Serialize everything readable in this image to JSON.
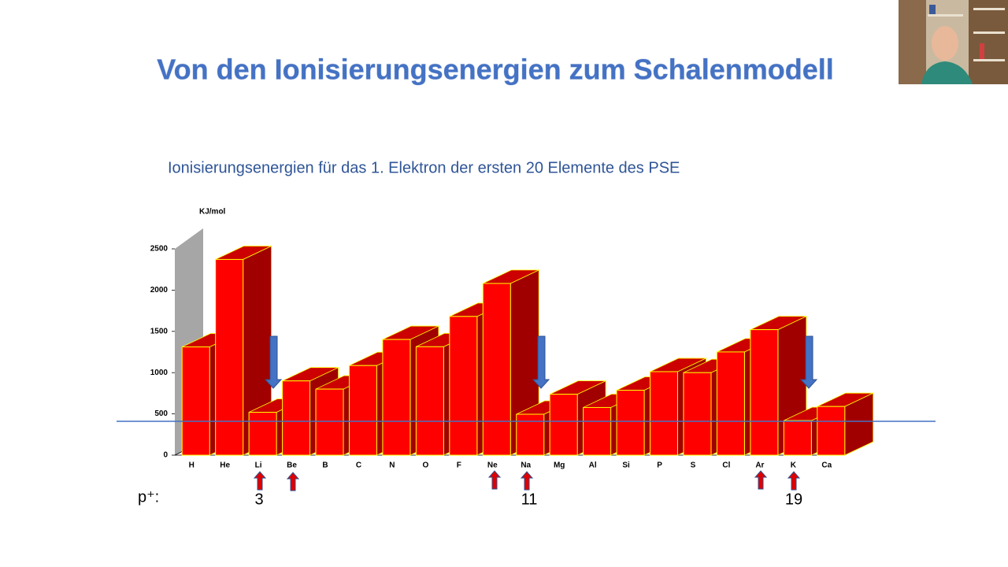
{
  "chart_data": {
    "type": "bar3d",
    "title": "Von den Ionisierungsenergien zum Schalenmodell",
    "subtitle": "Ionisierungsenergien für das 1. Elektron der ersten 20 Elemente des PSE",
    "y_label": "KJ/mol",
    "categories": [
      "H",
      "He",
      "Li",
      "Be",
      "B",
      "C",
      "N",
      "O",
      "F",
      "Ne",
      "Na",
      "Mg",
      "Al",
      "Si",
      "P",
      "S",
      "Cl",
      "Ar",
      "K",
      "Ca"
    ],
    "values": [
      1312,
      2372,
      520,
      900,
      801,
      1086,
      1402,
      1314,
      1681,
      2081,
      496,
      738,
      578,
      787,
      1012,
      1000,
      1251,
      1521,
      419,
      590
    ],
    "color": "#ff0000",
    "ylim": [
      0,
      2500
    ],
    "yticks": [
      0,
      500,
      1000,
      1500,
      2000,
      2500
    ],
    "grid": false,
    "proton_label": "p⁺:",
    "proton_numbers": [
      3,
      11,
      19
    ]
  }
}
